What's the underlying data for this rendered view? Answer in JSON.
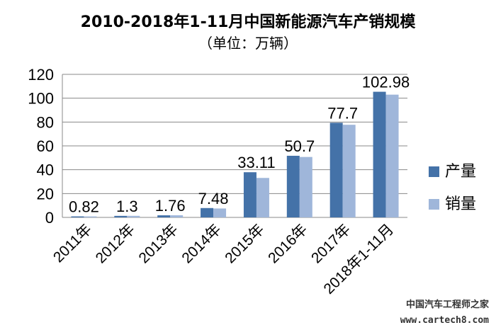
{
  "chart_data": {
    "type": "bar",
    "title": "2010-2018年1-11月中国新能源汽车产销规模",
    "subtitle": "（单位：万辆）",
    "categories": [
      "2011年",
      "2012年",
      "2013年",
      "2014年",
      "2015年",
      "2016年",
      "2017年",
      "2018年1-11月"
    ],
    "series": [
      {
        "name": "产量",
        "color": "#4472a8",
        "values": [
          0.84,
          1.28,
          1.75,
          7.85,
          37.9,
          51.7,
          79.4,
          105.4
        ]
      },
      {
        "name": "销量",
        "color": "#9fb6da",
        "values": [
          0.82,
          1.3,
          1.76,
          7.48,
          33.11,
          50.7,
          77.7,
          102.98
        ]
      }
    ],
    "data_labels": [
      "0.82",
      "1.3",
      "1.76",
      "7.48",
      "33.11",
      "50.7",
      "77.7",
      "102.98"
    ],
    "ylim": [
      0,
      120
    ],
    "yticks": [
      0,
      20,
      40,
      60,
      80,
      100,
      120
    ],
    "grid": true,
    "legend_position": "right"
  },
  "watermark": {
    "line1": "中国汽车工程师之家",
    "line2": "www.cartech8.com"
  }
}
